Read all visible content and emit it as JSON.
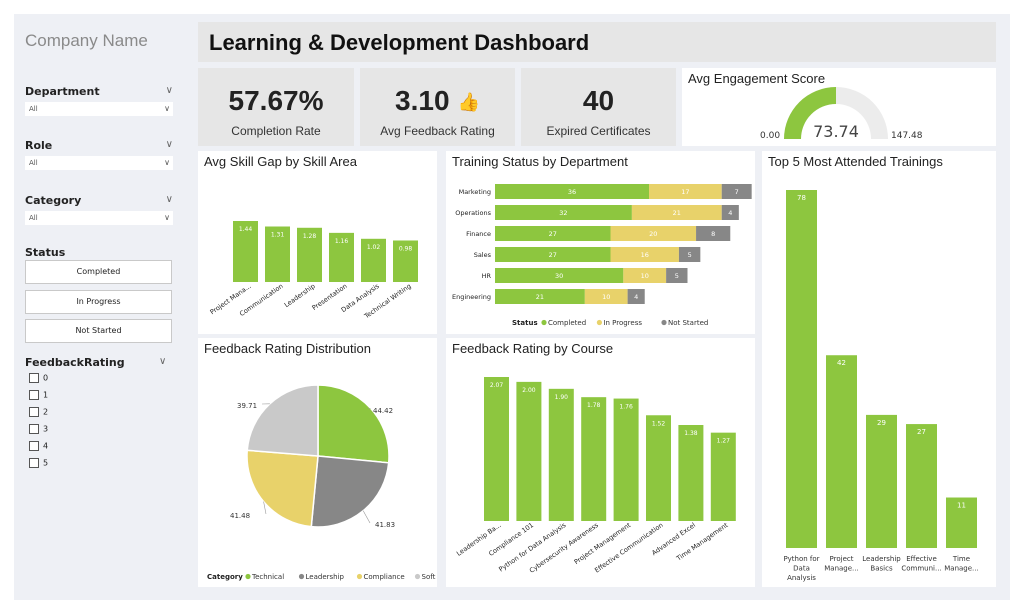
{
  "sidebar": {
    "company": "Company Name",
    "filters": [
      {
        "label": "Department",
        "value": "All"
      },
      {
        "label": "Role",
        "value": "All"
      },
      {
        "label": "Category",
        "value": "All"
      }
    ],
    "status_label": "Status",
    "status_buttons": [
      "Completed",
      "In Progress",
      "Not Started"
    ],
    "feedback_label": "FeedbackRating",
    "feedback_options": [
      "0",
      "1",
      "2",
      "3",
      "4",
      "5"
    ]
  },
  "header": {
    "title": "Learning & Development Dashboard"
  },
  "kpis": [
    {
      "value": "57.67%",
      "label": "Completion Rate"
    },
    {
      "value": "3.10",
      "label": "Avg Feedback Rating"
    },
    {
      "value": "40",
      "label": "Expired Certificates"
    }
  ],
  "colors": {
    "green": "#8dc63f",
    "yellow": "#e8d26a",
    "gray": "#878787",
    "lightgray": "#c9c9c9",
    "panel": "#e6e6e6"
  },
  "icons": {
    "feedback": "thumbs-up-stars-icon",
    "dropdown": "chevron-down-icon"
  },
  "gauge": {
    "title": "Avg Engagement Score",
    "value": 73.74,
    "min": 0.0,
    "max": 147.48,
    "value_label": "73.74",
    "min_label": "0.00",
    "max_label": "147.48"
  },
  "skill_gap": {
    "title": "Avg Skill Gap by Skill Area",
    "categories": [
      "Project Mana...",
      "Communication",
      "Leadership",
      "Presentation",
      "Data Analysis",
      "Technical Writing"
    ],
    "values": [
      1.44,
      1.31,
      1.28,
      1.16,
      1.02,
      0.98
    ]
  },
  "training_status": {
    "title": "Training Status by Department",
    "departments": [
      "Marketing",
      "Operations",
      "Finance",
      "Sales",
      "HR",
      "Engineering"
    ],
    "completed": [
      36,
      32,
      27,
      27,
      30,
      21
    ],
    "in_progress": [
      17,
      21,
      20,
      16,
      10,
      10
    ],
    "not_started": [
      7,
      4,
      8,
      5,
      5,
      4
    ],
    "legend_title": "Status",
    "legend": [
      "Completed",
      "In Progress",
      "Not Started"
    ]
  },
  "top_trainings": {
    "title": "Top 5 Most Attended Trainings",
    "labels": [
      [
        "Python for",
        "Data",
        "Analysis"
      ],
      [
        "Project",
        "Manage..."
      ],
      [
        "Leadership",
        "Basics"
      ],
      [
        "Effective",
        "Communi..."
      ],
      [
        "Time",
        "Manage..."
      ]
    ],
    "values": [
      78,
      42,
      29,
      27,
      11
    ]
  },
  "feedback_dist": {
    "title": "Feedback Rating Distribution",
    "slices": [
      {
        "name": "Technical",
        "value": 44.42,
        "label": "44.42"
      },
      {
        "name": "Leadership",
        "value": 41.83,
        "label": "41.83"
      },
      {
        "name": "Compliance",
        "value": 41.48,
        "label": "41.48"
      },
      {
        "name": "Soft Skills",
        "value": 39.71,
        "label": "39.71"
      }
    ],
    "legend_title": "Category"
  },
  "feedback_course": {
    "title": "Feedback Rating by Course",
    "categories": [
      "Leadership Ba...",
      "Compliance 101",
      "Python for Data Analysis",
      "Cybersecurity Awareness",
      "Project Management",
      "Effective Communication",
      "Advanced Excel",
      "Time Management"
    ],
    "values": [
      2.07,
      2.0,
      1.9,
      1.78,
      1.76,
      1.52,
      1.38,
      1.27
    ],
    "value_labels": [
      "2.07",
      "2.00",
      "1.90",
      "1.78",
      "1.76",
      "1.52",
      "1.38",
      "1.27"
    ]
  },
  "chart_data": [
    {
      "type": "bar",
      "title": "Avg Skill Gap by Skill Area",
      "categories": [
        "Project Mana...",
        "Communication",
        "Leadership",
        "Presentation",
        "Data Analysis",
        "Technical Writing"
      ],
      "values": [
        1.44,
        1.31,
        1.28,
        1.16,
        1.02,
        0.98
      ]
    },
    {
      "type": "bar",
      "title": "Training Status by Department",
      "orientation": "horizontal",
      "stacked": true,
      "categories": [
        "Marketing",
        "Operations",
        "Finance",
        "Sales",
        "HR",
        "Engineering"
      ],
      "series": [
        {
          "name": "Completed",
          "values": [
            36,
            32,
            27,
            27,
            30,
            21
          ]
        },
        {
          "name": "In Progress",
          "values": [
            17,
            21,
            20,
            16,
            10,
            10
          ]
        },
        {
          "name": "Not Started",
          "values": [
            7,
            4,
            8,
            5,
            5,
            4
          ]
        }
      ]
    },
    {
      "type": "bar",
      "title": "Top 5 Most Attended Trainings",
      "categories": [
        "Python for Data Analysis",
        "Project Manage...",
        "Leadership Basics",
        "Effective Communi...",
        "Time Manage..."
      ],
      "values": [
        78,
        42,
        29,
        27,
        11
      ]
    },
    {
      "type": "pie",
      "title": "Feedback Rating Distribution",
      "categories": [
        "Technical",
        "Leadership",
        "Compliance",
        "Soft Skills"
      ],
      "values": [
        44.42,
        41.83,
        41.48,
        39.71
      ]
    },
    {
      "type": "bar",
      "title": "Feedback Rating by Course",
      "categories": [
        "Leadership Ba...",
        "Compliance 101",
        "Python for Data Analysis",
        "Cybersecurity Awareness",
        "Project Management",
        "Effective Communication",
        "Advanced Excel",
        "Time Management"
      ],
      "values": [
        2.07,
        2.0,
        1.9,
        1.78,
        1.76,
        1.52,
        1.38,
        1.27
      ]
    }
  ]
}
